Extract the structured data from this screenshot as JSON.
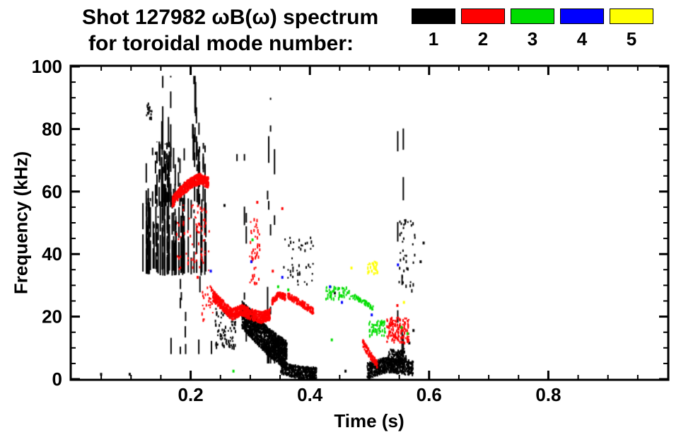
{
  "header": {
    "title_line1": "Shot 127982 ωB(ω) spectrum",
    "title_line2": "for toroidal mode number:"
  },
  "legend": {
    "items": [
      {
        "label": "1",
        "color": "#000000"
      },
      {
        "label": "2",
        "color": "#ff0000"
      },
      {
        "label": "3",
        "color": "#00dd00"
      },
      {
        "label": "4",
        "color": "#0000ff"
      },
      {
        "label": "5",
        "color": "#ffff00"
      }
    ]
  },
  "axes": {
    "xlabel": "Time (s)",
    "ylabel": "Frequency (kHz)"
  },
  "chart_data": {
    "type": "scatter",
    "title": "Shot 127982 ωB(ω) spectrum for toroidal mode number",
    "xlabel": "Time (s)",
    "ylabel": "Frequency (kHz)",
    "xlim": [
      0,
      1.0
    ],
    "ylim": [
      0,
      100
    ],
    "x_major_ticks": [
      0.2,
      0.4,
      0.6,
      0.8
    ],
    "x_minor_step": 0.05,
    "y_major_ticks": [
      0,
      20,
      40,
      60,
      80,
      100
    ],
    "y_minor_step": 5,
    "grid": false,
    "legend_position": "top-right",
    "series": [
      {
        "name": "n=1",
        "color": "#000000"
      },
      {
        "name": "n=2",
        "color": "#ff0000"
      },
      {
        "name": "n=3",
        "color": "#00dd00"
      },
      {
        "name": "n=4",
        "color": "#0000ff"
      },
      {
        "name": "n=5",
        "color": "#ffff00"
      }
    ],
    "clusters": [
      {
        "mode": 1,
        "type": "vstreaks",
        "t": [
          0.118,
          0.225
        ],
        "f": [
          33,
          58
        ],
        "lines": 50,
        "seg": [
          4,
          14
        ],
        "gap": [
          1,
          2
        ],
        "fill": 0.95,
        "ragged": true,
        "seed": 11
      },
      {
        "mode": 1,
        "type": "vstreaks",
        "t": [
          0.12,
          0.225
        ],
        "f": [
          55,
          76
        ],
        "lines": 34,
        "seg": [
          2,
          8
        ],
        "gap": [
          1,
          4
        ],
        "fill": 0.75,
        "ragged": true,
        "seed": 12
      },
      {
        "mode": 1,
        "type": "vstreaks",
        "t": [
          0.148,
          0.172
        ],
        "f": [
          55,
          97
        ],
        "lines": 6,
        "seg": [
          4,
          20
        ],
        "gap": [
          2,
          8
        ],
        "fill": 0.7,
        "seed": 13
      },
      {
        "mode": 1,
        "type": "vstreaks",
        "t": [
          0.196,
          0.224
        ],
        "f": [
          70,
          97
        ],
        "lines": 7,
        "seg": [
          3,
          14
        ],
        "gap": [
          2,
          8
        ],
        "fill": 0.6,
        "seed": 14
      },
      {
        "mode": 1,
        "type": "vstreaks",
        "t": [
          0.165,
          0.235
        ],
        "f": [
          8,
          33
        ],
        "lines": 10,
        "seg": [
          2,
          6
        ],
        "gap": [
          3,
          9
        ],
        "fill": 0.35,
        "seed": 15
      },
      {
        "mode": 1,
        "type": "blob",
        "t": [
          0.124,
          0.134
        ],
        "f": [
          83,
          89
        ],
        "n": 18,
        "seed": 16
      },
      {
        "mode": 1,
        "type": "band",
        "path": [
          [
            0.285,
            21
          ],
          [
            0.305,
            17
          ],
          [
            0.325,
            13
          ],
          [
            0.345,
            10
          ],
          [
            0.36,
            8
          ]
        ],
        "width": 9,
        "n": 1500,
        "seed": 17
      },
      {
        "mode": 1,
        "type": "band",
        "path": [
          [
            0.35,
            4
          ],
          [
            0.38,
            2.5
          ],
          [
            0.41,
            2
          ]
        ],
        "width": 4,
        "n": 450,
        "seed": 18
      },
      {
        "mode": 1,
        "type": "vstreaks",
        "t": [
          0.327,
          0.342
        ],
        "f": [
          5,
          90
        ],
        "lines": 4,
        "seg": [
          2,
          9
        ],
        "gap": [
          3,
          14
        ],
        "fill": 0.5,
        "seed": 19
      },
      {
        "mode": 1,
        "type": "blob",
        "t": [
          0.355,
          0.405
        ],
        "f": [
          30,
          46
        ],
        "n": 45,
        "seed": 20
      },
      {
        "mode": 1,
        "type": "band",
        "path": [
          [
            0.495,
            3
          ],
          [
            0.53,
            5
          ],
          [
            0.572,
            4
          ]
        ],
        "width": 5,
        "n": 600,
        "seed": 21
      },
      {
        "mode": 1,
        "type": "blob",
        "t": [
          0.53,
          0.56
        ],
        "f": [
          5,
          10
        ],
        "n": 120,
        "seed": 22
      },
      {
        "mode": 1,
        "type": "vstreaks",
        "t": [
          0.545,
          0.558
        ],
        "f": [
          8,
          86
        ],
        "lines": 3,
        "seg": [
          2,
          8
        ],
        "gap": [
          4,
          16
        ],
        "fill": 0.45,
        "seed": 23
      },
      {
        "mode": 1,
        "type": "blob",
        "t": [
          0.548,
          0.578
        ],
        "f": [
          28,
          52
        ],
        "n": 40,
        "seed": 24
      },
      {
        "mode": 1,
        "type": "blob",
        "t": [
          0.24,
          0.275
        ],
        "f": [
          10,
          23
        ],
        "n": 90,
        "seed": 25
      },
      {
        "mode": 1,
        "type": "vstreaks",
        "t": [
          0.252,
          0.3
        ],
        "f": [
          12,
          72
        ],
        "lines": 5,
        "seg": [
          2,
          8
        ],
        "gap": [
          4,
          18
        ],
        "fill": 0.4,
        "seed": 26
      },
      {
        "mode": 1,
        "type": "dots",
        "points": [
          [
            0.048,
            2
          ],
          [
            0.096,
            2
          ],
          [
            0.255,
            56
          ],
          [
            0.44,
            28
          ],
          [
            0.458,
            3
          ],
          [
            0.589,
            44
          ],
          [
            0.584,
            38
          ],
          [
            0.565,
            12
          ],
          [
            0.572,
            16
          ]
        ],
        "seed": 27
      },
      {
        "mode": 2,
        "type": "band",
        "path": [
          [
            0.168,
            57
          ],
          [
            0.185,
            61
          ],
          [
            0.2,
            63
          ],
          [
            0.215,
            64.5
          ],
          [
            0.229,
            63
          ]
        ],
        "width": 3.5,
        "n": 550,
        "seed": 31
      },
      {
        "mode": 2,
        "type": "blob",
        "t": [
          0.175,
          0.23
        ],
        "f": [
          35,
          56
        ],
        "n": 70,
        "seed": 32
      },
      {
        "mode": 2,
        "type": "band",
        "path": [
          [
            0.236,
            27
          ],
          [
            0.252,
            24
          ],
          [
            0.268,
            21
          ],
          [
            0.285,
            22.5
          ],
          [
            0.3,
            21
          ],
          [
            0.318,
            20
          ],
          [
            0.332,
            21
          ]
        ],
        "width": 3.5,
        "n": 800,
        "seed": 33
      },
      {
        "mode": 2,
        "type": "band",
        "path": [
          [
            0.335,
            25
          ],
          [
            0.347,
            27.5
          ],
          [
            0.358,
            26.5
          ]
        ],
        "width": 2,
        "n": 130,
        "seed": 34
      },
      {
        "mode": 2,
        "type": "band",
        "path": [
          [
            0.362,
            27
          ],
          [
            0.385,
            24.5
          ],
          [
            0.405,
            22
          ]
        ],
        "width": 2,
        "n": 160,
        "seed": 35
      },
      {
        "mode": 2,
        "type": "band",
        "path": [
          [
            0.487,
            12
          ],
          [
            0.5,
            8
          ],
          [
            0.512,
            5
          ]
        ],
        "width": 2.5,
        "n": 90,
        "seed": 36
      },
      {
        "mode": 2,
        "type": "blob",
        "t": [
          0.528,
          0.565
        ],
        "f": [
          12,
          20
        ],
        "n": 130,
        "seed": 37
      },
      {
        "mode": 2,
        "type": "blob",
        "t": [
          0.298,
          0.315
        ],
        "f": [
          30,
          52
        ],
        "n": 45,
        "seed": 38
      },
      {
        "mode": 2,
        "type": "blob",
        "t": [
          0.218,
          0.238
        ],
        "f": [
          18,
          30
        ],
        "n": 25,
        "seed": 39
      },
      {
        "mode": 2,
        "type": "dots",
        "points": [
          [
            0.21,
            33
          ],
          [
            0.336,
            35
          ],
          [
            0.352,
            55
          ],
          [
            0.31,
            57
          ],
          [
            0.545,
            24
          ]
        ],
        "seed": 40
      },
      {
        "mode": 3,
        "type": "blob",
        "t": [
          0.425,
          0.468
        ],
        "f": [
          26,
          30
        ],
        "n": 55,
        "seed": 41
      },
      {
        "mode": 3,
        "type": "band",
        "path": [
          [
            0.47,
            27
          ],
          [
            0.49,
            25
          ],
          [
            0.505,
            23
          ]
        ],
        "width": 1.5,
        "n": 60,
        "seed": 42
      },
      {
        "mode": 3,
        "type": "blob",
        "t": [
          0.498,
          0.525
        ],
        "f": [
          14,
          19
        ],
        "n": 55,
        "seed": 43
      },
      {
        "mode": 3,
        "type": "dots",
        "points": [
          [
            0.27,
            3
          ],
          [
            0.302,
            45
          ],
          [
            0.345,
            30
          ],
          [
            0.362,
            29
          ],
          [
            0.552,
            17
          ],
          [
            0.562,
            15
          ],
          [
            0.435,
            13
          ]
        ],
        "seed": 44
      },
      {
        "mode": 4,
        "type": "dots",
        "points": [
          [
            0.232,
            35
          ],
          [
            0.3,
            38
          ],
          [
            0.352,
            33
          ],
          [
            0.432,
            30
          ],
          [
            0.452,
            25
          ],
          [
            0.502,
            21
          ],
          [
            0.546,
            37
          ]
        ],
        "seed": 51
      },
      {
        "mode": 5,
        "type": "blob",
        "t": [
          0.496,
          0.514
        ],
        "f": [
          34,
          38
        ],
        "n": 28,
        "seed": 61
      },
      {
        "mode": 5,
        "type": "dots",
        "points": [
          [
            0.468,
            36
          ],
          [
            0.556,
            25
          ]
        ],
        "seed": 62
      }
    ]
  }
}
